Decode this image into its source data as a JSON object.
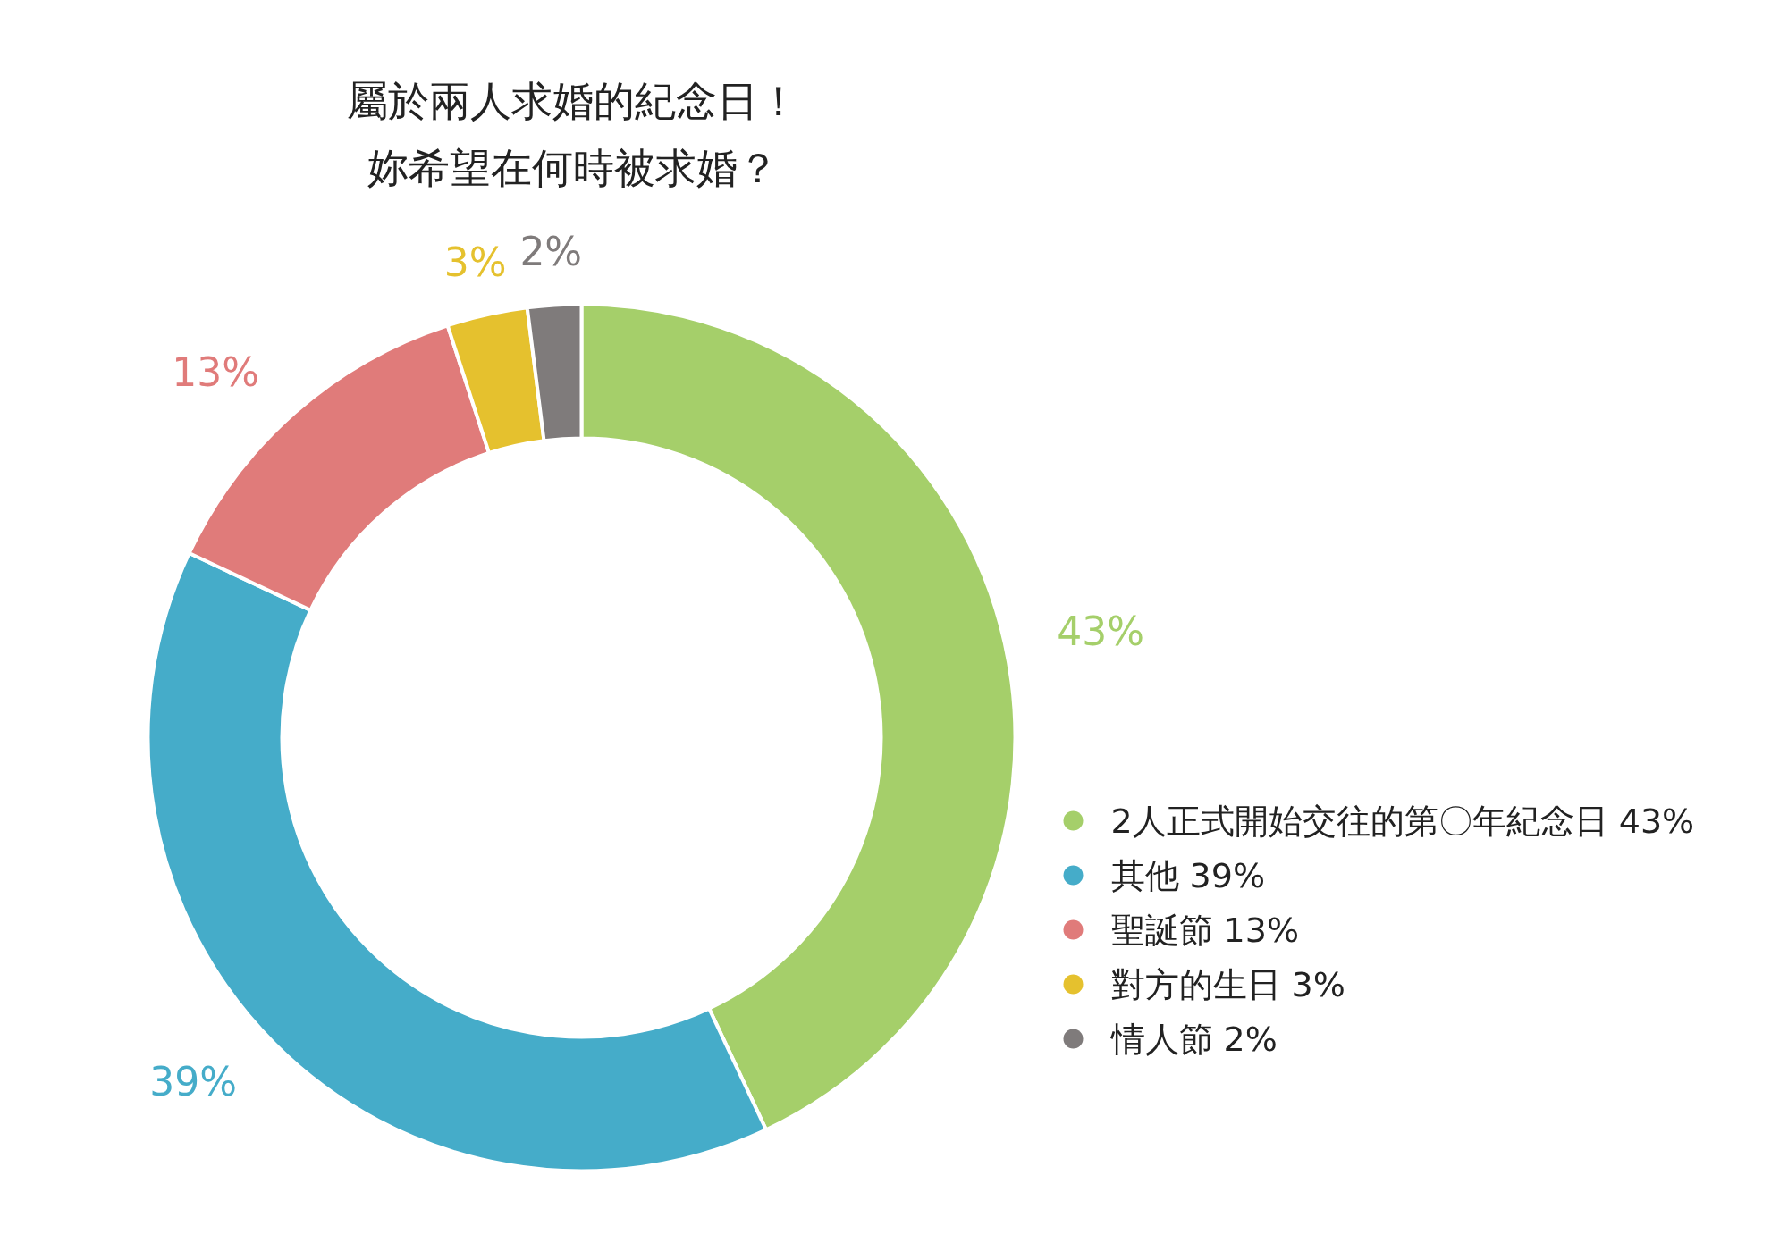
{
  "chart_data": {
    "type": "donut",
    "title": "屬於兩人求婚的紀念日！",
    "subtitle": "妳希望在何時被求婚？",
    "categories": [
      "2人正式開始交往的第〇年紀念日 43%",
      "其他 39%",
      "聖誕節 13%",
      "對方的生日 3%",
      "情人節 2%"
    ],
    "values": [
      43,
      39,
      13,
      3,
      2
    ],
    "colors": [
      "#a5cf6a",
      "#45acc9",
      "#e07b7a",
      "#e5c12e",
      "#7f7b7b"
    ],
    "value_labels": [
      "43%",
      "39%",
      "13%",
      "3%",
      "2%"
    ],
    "legend": "right"
  }
}
